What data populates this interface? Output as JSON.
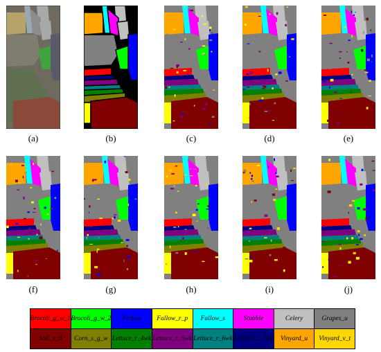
{
  "panels": [
    {
      "id": "a",
      "caption": "(a)",
      "kind": "rgb"
    },
    {
      "id": "b",
      "caption": "(b)",
      "kind": "ground-truth"
    },
    {
      "id": "c",
      "caption": "(c)",
      "kind": "classification"
    },
    {
      "id": "d",
      "caption": "(d)",
      "kind": "classification"
    },
    {
      "id": "e",
      "caption": "(e)",
      "kind": "classification"
    },
    {
      "id": "f",
      "caption": "(f)",
      "kind": "classification"
    },
    {
      "id": "g",
      "caption": "(g)",
      "kind": "classification"
    },
    {
      "id": "h",
      "caption": "(h)",
      "kind": "classification"
    },
    {
      "id": "i",
      "caption": "(i)",
      "kind": "classification"
    },
    {
      "id": "j",
      "caption": "(j)",
      "kind": "classification"
    }
  ],
  "legend": [
    {
      "label": "Brocoli_g_w_1",
      "color": "#ff0000",
      "text_color": "#000000"
    },
    {
      "label": "Brocoli_g_w_2",
      "color": "#00ff00",
      "text_color": "#000000"
    },
    {
      "label": "Fallow",
      "color": "#0000ff",
      "text_color": "#000000"
    },
    {
      "label": "Fallow_r_p",
      "color": "#ffff00",
      "text_color": "#000000"
    },
    {
      "label": "Fallow_s",
      "color": "#00ffff",
      "text_color": "#000000"
    },
    {
      "label": "Stubble",
      "color": "#ff00ff",
      "text_color": "#000000"
    },
    {
      "label": "Celery",
      "color": "#c0c0c0",
      "text_color": "#000000"
    },
    {
      "label": "Grapes_u",
      "color": "#808080",
      "text_color": "#000000"
    },
    {
      "label": "Soil_v_d",
      "color": "#800000",
      "text_color": "#000000"
    },
    {
      "label": "Corn_s_g_w",
      "color": "#808000",
      "text_color": "#000000"
    },
    {
      "label": "Lettuce_r_4wk",
      "color": "#008000",
      "text_color": "#000000"
    },
    {
      "label": "Lettuce_r_5wk",
      "color": "#800080",
      "text_color": "#000000"
    },
    {
      "label": "Lettuce_r_6wk",
      "color": "#008080",
      "text_color": "#000000"
    },
    {
      "label": "Lettuce_r_7wk",
      "color": "#000080",
      "text_color": "#000000"
    },
    {
      "label": "Vinyard_u",
      "color": "#ffa500",
      "text_color": "#000000"
    },
    {
      "label": "Vinyard_v_t",
      "color": "#ffd700",
      "text_color": "#000000"
    }
  ]
}
